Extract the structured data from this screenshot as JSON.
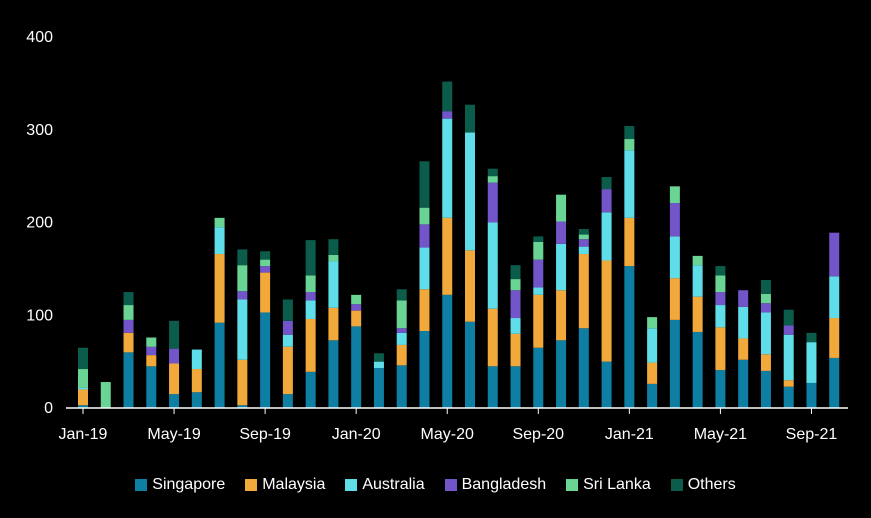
{
  "chart_data": {
    "type": "bar",
    "stacked": true,
    "title": "",
    "xlabel": "",
    "ylabel": "",
    "ylim": [
      0,
      400
    ],
    "yticks": [
      0,
      100,
      200,
      300,
      400
    ],
    "xtick_labels": [
      "Jan-19",
      "May-19",
      "Sep-19",
      "Jan-20",
      "May-20",
      "Sep-20",
      "Jan-21",
      "May-21",
      "Sep-21"
    ],
    "categories": [
      "Jan-19",
      "Feb-19",
      "Mar-19",
      "Apr-19",
      "May-19",
      "Jun-19",
      "Jul-19",
      "Aug-19",
      "Sep-19",
      "Oct-19",
      "Nov-19",
      "Dec-19",
      "Jan-20",
      "Feb-20",
      "Mar-20",
      "Apr-20",
      "May-20",
      "Jun-20",
      "Jul-20",
      "Aug-20",
      "Sep-20",
      "Oct-20",
      "Nov-20",
      "Dec-20",
      "Jan-21",
      "Feb-21",
      "Mar-21",
      "Apr-21",
      "May-21",
      "Jun-21",
      "Jul-21",
      "Aug-21",
      "Sep-21",
      "Oct-21"
    ],
    "grid": false,
    "legend_position": "bottom",
    "series": [
      {
        "name": "Singapore",
        "color": "#0e7ea3",
        "values": [
          3,
          0,
          60,
          45,
          15,
          17,
          92,
          3,
          103,
          15,
          39,
          73,
          88,
          43,
          46,
          83,
          122,
          93,
          45,
          45,
          65,
          73,
          86,
          50,
          153,
          26,
          95,
          82,
          41,
          52,
          40,
          23,
          27,
          54
        ]
      },
      {
        "name": "Malaysia",
        "color": "#f2a93b",
        "values": [
          17,
          0,
          21,
          12,
          33,
          25,
          74,
          49,
          43,
          51,
          57,
          35,
          17,
          0,
          22,
          45,
          83,
          77,
          62,
          35,
          57,
          54,
          80,
          109,
          52,
          23,
          45,
          38,
          46,
          23,
          18,
          7,
          0,
          43
        ]
      },
      {
        "name": "Australia",
        "color": "#5fdde8",
        "values": [
          2,
          0,
          0,
          0,
          0,
          21,
          29,
          65,
          0,
          13,
          20,
          50,
          0,
          7,
          13,
          45,
          107,
          127,
          93,
          17,
          8,
          50,
          8,
          52,
          73,
          37,
          45,
          34,
          24,
          34,
          45,
          49,
          44,
          45
        ]
      },
      {
        "name": "Bangladesh",
        "color": "#7155c9",
        "values": [
          0,
          0,
          14,
          9,
          16,
          0,
          0,
          9,
          7,
          15,
          9,
          0,
          7,
          0,
          5,
          25,
          8,
          0,
          43,
          30,
          30,
          24,
          8,
          25,
          0,
          0,
          36,
          0,
          14,
          18,
          10,
          10,
          0,
          47
        ]
      },
      {
        "name": "Sri Lanka",
        "color": "#69d494",
        "values": [
          20,
          28,
          16,
          10,
          0,
          0,
          10,
          28,
          7,
          0,
          18,
          7,
          10,
          0,
          30,
          18,
          0,
          0,
          7,
          12,
          19,
          29,
          5,
          0,
          12,
          12,
          18,
          10,
          18,
          0,
          10,
          0,
          0,
          0
        ]
      },
      {
        "name": "Others",
        "color": "#0b5c4a",
        "values": [
          23,
          0,
          14,
          0,
          30,
          0,
          0,
          17,
          9,
          23,
          38,
          17,
          0,
          9,
          12,
          50,
          32,
          30,
          8,
          15,
          6,
          0,
          6,
          13,
          14,
          0,
          0,
          0,
          10,
          0,
          15,
          17,
          10,
          0
        ]
      }
    ]
  }
}
